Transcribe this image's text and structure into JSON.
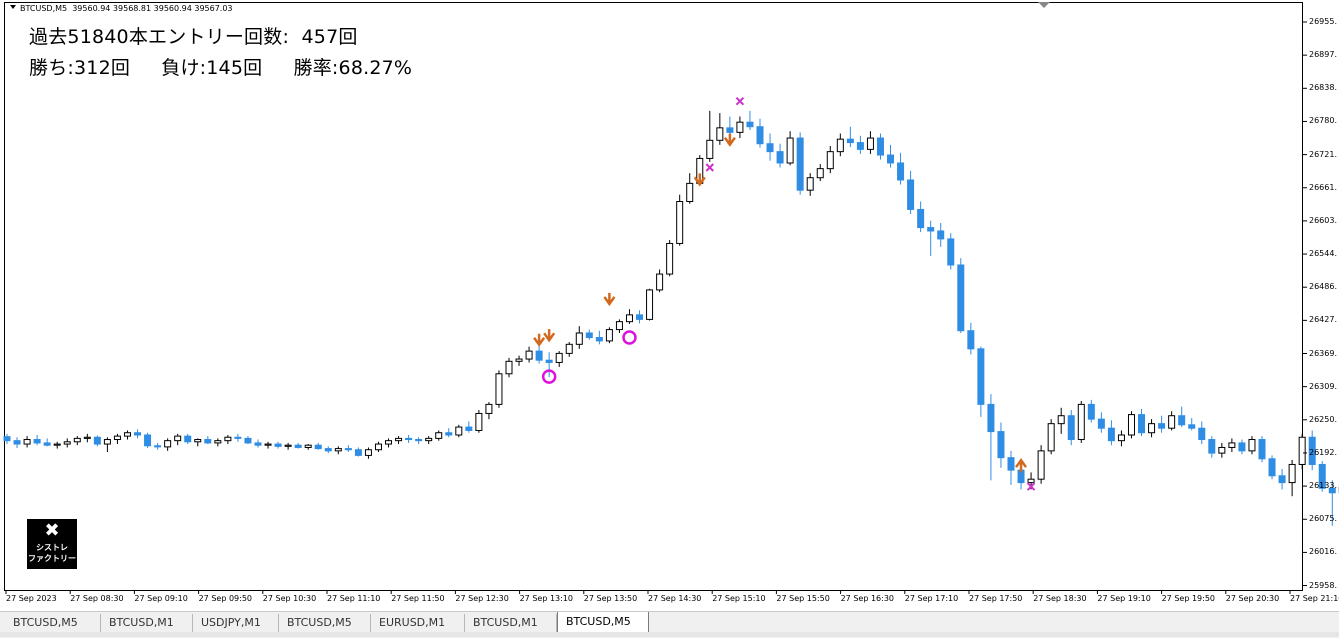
{
  "chart": {
    "header": "BTCUSD,M5  39560.94 39568.81 39560.94 39567.03",
    "info_line1": "過去51840本エントリー回数:  457回",
    "info_line2": "勝ち:312回     負け:145回     勝率:68.27%",
    "logo": {
      "icon": "tools-icon",
      "line1": "シストレ",
      "line2": "ファクトリー"
    },
    "colors": {
      "bull_body": "#ffffff",
      "bull_outline": "#000000",
      "bear": "#2f8de4",
      "arrow": "#d2691e",
      "cross": "#cc33cc",
      "circle": "#dd11dd"
    }
  },
  "price_axis": [
    "26955.",
    "26897.",
    "26838.",
    "26780.",
    "26721.",
    "26661.",
    "26603.",
    "26544.",
    "26486.",
    "26427.",
    "26369.",
    "26309.",
    "26250.",
    "26192.",
    "26133.",
    "26075.",
    "26016.",
    "25958."
  ],
  "time_axis": [
    "27 Sep 2023",
    "27 Sep 08:30",
    "27 Sep 09:10",
    "27 Sep 09:50",
    "27 Sep 10:30",
    "27 Sep 11:10",
    "27 Sep 11:50",
    "27 Sep 12:30",
    "27 Sep 13:10",
    "27 Sep 13:50",
    "27 Sep 14:30",
    "27 Sep 15:10",
    "27 Sep 15:50",
    "27 Sep 16:30",
    "27 Sep 17:10",
    "27 Sep 17:50",
    "27 Sep 18:30",
    "27 Sep 19:10",
    "27 Sep 19:50",
    "27 Sep 20:30",
    "27 Sep 21:10"
  ],
  "tabs": [
    {
      "label": "BTCUSD,M5",
      "active": false
    },
    {
      "label": "BTCUSD,M1",
      "active": false
    },
    {
      "label": "USDJPY,M1",
      "active": false
    },
    {
      "label": "BTCUSD,M5",
      "active": false
    },
    {
      "label": "EURUSD,M1",
      "active": false
    },
    {
      "label": "BTCUSD,M1",
      "active": false
    },
    {
      "label": "BTCUSD,M5",
      "active": true
    }
  ],
  "chart_data": {
    "type": "candlestick",
    "symbol": "BTCUSD",
    "timeframe": "M5",
    "ylim": [
      25958,
      26985
    ],
    "bar_interval_minutes": 5,
    "x_ticks": [
      "27 Sep 2023",
      "27 Sep 08:30",
      "27 Sep 09:10",
      "27 Sep 09:50",
      "27 Sep 10:30",
      "27 Sep 11:10",
      "27 Sep 11:50",
      "27 Sep 12:30",
      "27 Sep 13:10",
      "27 Sep 13:50",
      "27 Sep 14:30",
      "27 Sep 15:10",
      "27 Sep 15:50",
      "27 Sep 16:30",
      "27 Sep 17:10",
      "27 Sep 17:50",
      "27 Sep 18:30",
      "27 Sep 19:10",
      "27 Sep 19:50",
      "27 Sep 20:30",
      "27 Sep 21:10"
    ],
    "candles": [
      [
        26225,
        26230,
        26212,
        26218
      ],
      [
        26218,
        26224,
        26205,
        26212
      ],
      [
        26212,
        26226,
        26206,
        26220
      ],
      [
        26220,
        26228,
        26210,
        26214
      ],
      [
        26214,
        26222,
        26208,
        26210
      ],
      [
        26210,
        26216,
        26204,
        26212
      ],
      [
        26212,
        26222,
        26206,
        26216
      ],
      [
        26216,
        26226,
        26210,
        26222
      ],
      [
        26222,
        26230,
        26215,
        26224
      ],
      [
        26224,
        26227,
        26208,
        26212
      ],
      [
        26212,
        26224,
        26198,
        26220
      ],
      [
        26220,
        26230,
        26212,
        26226
      ],
      [
        26226,
        26236,
        26220,
        26232
      ],
      [
        26232,
        26238,
        26222,
        26228
      ],
      [
        26228,
        26232,
        26205,
        26209
      ],
      [
        26209,
        26214,
        26202,
        26207
      ],
      [
        26207,
        26222,
        26200,
        26218
      ],
      [
        26218,
        26230,
        26210,
        26226
      ],
      [
        26226,
        26230,
        26212,
        26216
      ],
      [
        26216,
        26222,
        26208,
        26220
      ],
      [
        26220,
        26226,
        26212,
        26214
      ],
      [
        26214,
        26222,
        26208,
        26218
      ],
      [
        26218,
        26228,
        26212,
        26224
      ],
      [
        26224,
        26230,
        26216,
        26222
      ],
      [
        26222,
        26226,
        26212,
        26214
      ],
      [
        26214,
        26220,
        26206,
        26210
      ],
      [
        26210,
        26216,
        26204,
        26212
      ],
      [
        26212,
        26216,
        26204,
        26208
      ],
      [
        26208,
        26214,
        26202,
        26210
      ],
      [
        26210,
        26214,
        26204,
        26206
      ],
      [
        26206,
        26212,
        26202,
        26210
      ],
      [
        26210,
        26214,
        26202,
        26204
      ],
      [
        26204,
        26208,
        26196,
        26200
      ],
      [
        26200,
        26208,
        26194,
        26204
      ],
      [
        26204,
        26210,
        26198,
        26202
      ],
      [
        26202,
        26206,
        26190,
        26192
      ],
      [
        26192,
        26206,
        26186,
        26202
      ],
      [
        26202,
        26216,
        26198,
        26212
      ],
      [
        26212,
        26222,
        26206,
        26218
      ],
      [
        26218,
        26226,
        26212,
        26222
      ],
      [
        26222,
        26228,
        26214,
        26220
      ],
      [
        26220,
        26224,
        26212,
        26218
      ],
      [
        26218,
        26226,
        26212,
        26222
      ],
      [
        26222,
        26236,
        26218,
        26232
      ],
      [
        26232,
        26240,
        26224,
        26228
      ],
      [
        26228,
        26246,
        26224,
        26242
      ],
      [
        26242,
        26252,
        26232,
        26236
      ],
      [
        26236,
        26272,
        26232,
        26266
      ],
      [
        26266,
        26286,
        26256,
        26282
      ],
      [
        26282,
        26342,
        26276,
        26336
      ],
      [
        26336,
        26364,
        26330,
        26358
      ],
      [
        26358,
        26368,
        26350,
        26362
      ],
      [
        26362,
        26384,
        26356,
        26376
      ],
      [
        26376,
        26392,
        26354,
        26360
      ],
      [
        26360,
        26374,
        26330,
        26356
      ],
      [
        26356,
        26376,
        26348,
        26372
      ],
      [
        26372,
        26392,
        26366,
        26388
      ],
      [
        26388,
        26420,
        26380,
        26408
      ],
      [
        26408,
        26414,
        26396,
        26400
      ],
      [
        26400,
        26412,
        26388,
        26394
      ],
      [
        26394,
        26418,
        26390,
        26414
      ],
      [
        26414,
        26432,
        26408,
        26428
      ],
      [
        26428,
        26450,
        26424,
        26440
      ],
      [
        26440,
        26448,
        26425,
        26432
      ],
      [
        26432,
        26486,
        26430,
        26484
      ],
      [
        26484,
        26520,
        26480,
        26512
      ],
      [
        26512,
        26572,
        26508,
        26566
      ],
      [
        26566,
        26652,
        26562,
        26640
      ],
      [
        26640,
        26690,
        26636,
        26672
      ],
      [
        26672,
        26722,
        26668,
        26716
      ],
      [
        26716,
        26800,
        26710,
        26748
      ],
      [
        26748,
        26796,
        26740,
        26770
      ],
      [
        26770,
        26790,
        26742,
        26762
      ],
      [
        26762,
        26790,
        26752,
        26780
      ],
      [
        26780,
        26800,
        26766,
        26772
      ],
      [
        26772,
        26786,
        26735,
        26742
      ],
      [
        26742,
        26760,
        26712,
        26728
      ],
      [
        26728,
        26742,
        26700,
        26708
      ],
      [
        26708,
        26764,
        26704,
        26752
      ],
      [
        26752,
        26762,
        26652,
        26660
      ],
      [
        26660,
        26690,
        26650,
        26682
      ],
      [
        26682,
        26706,
        26676,
        26698
      ],
      [
        26698,
        26738,
        26690,
        26728
      ],
      [
        26728,
        26760,
        26720,
        26750
      ],
      [
        26750,
        26772,
        26736,
        26744
      ],
      [
        26744,
        26756,
        26724,
        26732
      ],
      [
        26732,
        26764,
        26724,
        26752
      ],
      [
        26752,
        26760,
        26714,
        26722
      ],
      [
        26722,
        26740,
        26700,
        26708
      ],
      [
        26708,
        26726,
        26670,
        26678
      ],
      [
        26678,
        26694,
        26618,
        26626
      ],
      [
        26626,
        26640,
        26586,
        26594
      ],
      [
        26594,
        26606,
        26544,
        26588
      ],
      [
        26588,
        26602,
        26560,
        26574
      ],
      [
        26574,
        26584,
        26520,
        26528
      ],
      [
        26528,
        26540,
        26408,
        26412
      ],
      [
        26412,
        26426,
        26370,
        26380
      ],
      [
        26380,
        26384,
        26260,
        26282
      ],
      [
        26282,
        26300,
        26148,
        26234
      ],
      [
        26234,
        26250,
        26170,
        26188
      ],
      [
        26188,
        26200,
        26140,
        26166
      ],
      [
        26166,
        26180,
        26132,
        26144
      ],
      [
        26144,
        26162,
        26132,
        26150
      ],
      [
        26150,
        26210,
        26142,
        26200
      ],
      [
        26200,
        26256,
        26194,
        26248
      ],
      [
        26248,
        26276,
        26230,
        26262
      ],
      [
        26262,
        26272,
        26210,
        26220
      ],
      [
        26220,
        26288,
        26214,
        26282
      ],
      [
        26282,
        26290,
        26250,
        26256
      ],
      [
        26256,
        26268,
        26232,
        26240
      ],
      [
        26240,
        26254,
        26210,
        26218
      ],
      [
        26218,
        26236,
        26208,
        26228
      ],
      [
        26228,
        26270,
        26222,
        26264
      ],
      [
        26264,
        26274,
        26226,
        26232
      ],
      [
        26232,
        26256,
        26224,
        26248
      ],
      [
        26248,
        26262,
        26232,
        26240
      ],
      [
        26240,
        26270,
        26236,
        26262
      ],
      [
        26262,
        26278,
        26242,
        26246
      ],
      [
        26246,
        26258,
        26236,
        26240
      ],
      [
        26240,
        26252,
        26212,
        26220
      ],
      [
        26220,
        26226,
        26188,
        26196
      ],
      [
        26196,
        26214,
        26188,
        26206
      ],
      [
        26206,
        26222,
        26198,
        26214
      ],
      [
        26214,
        26220,
        26194,
        26200
      ],
      [
        26200,
        26226,
        26194,
        26220
      ],
      [
        26220,
        26226,
        26180,
        26186
      ],
      [
        26186,
        26192,
        26150,
        26156
      ],
      [
        26156,
        26168,
        26132,
        26144
      ],
      [
        26144,
        26184,
        26120,
        26176
      ],
      [
        26176,
        26230,
        26168,
        26224
      ],
      [
        26224,
        26236,
        26166,
        26176
      ],
      [
        26176,
        26182,
        26128,
        26134
      ],
      [
        26134,
        26148,
        26068,
        26126
      ],
      [
        26126,
        26142,
        26108,
        26136
      ]
    ],
    "signals": [
      {
        "type": "down-arrow",
        "bar": 53,
        "price": 26382
      },
      {
        "type": "down-arrow",
        "bar": 60,
        "price": 26454
      },
      {
        "type": "down-arrow",
        "bar": 69,
        "price": 26665
      },
      {
        "type": "down-arrow",
        "bar": 72,
        "price": 26735
      },
      {
        "type": "down-arrow",
        "bar": 54,
        "price": 26390
      },
      {
        "type": "up-arrow",
        "bar": 101,
        "price": 26180
      },
      {
        "type": "cross",
        "bar": 70,
        "price": 26700
      },
      {
        "type": "cross",
        "bar": 73,
        "price": 26817
      },
      {
        "type": "cross",
        "bar": 102,
        "price": 26137
      },
      {
        "type": "circle",
        "bar": 54,
        "price": 26331
      },
      {
        "type": "circle",
        "bar": 62,
        "price": 26400
      }
    ]
  }
}
